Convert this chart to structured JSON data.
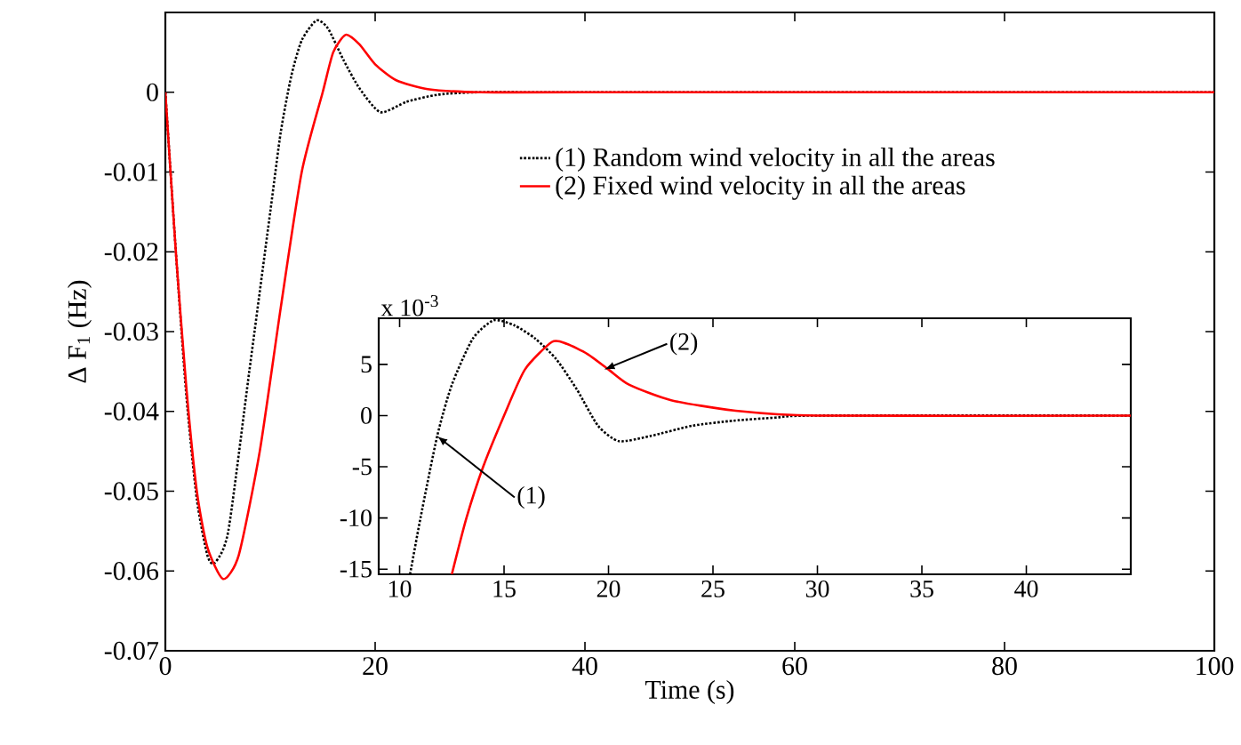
{
  "chart_data": [
    {
      "type": "line",
      "xlabel": "Time (s)",
      "ylabel": "Δ F$_{1}$ (Hz)",
      "xlim": [
        0,
        100
      ],
      "ylim": [
        -0.07,
        0.01
      ],
      "xticks": [
        0,
        20,
        40,
        60,
        80,
        100
      ],
      "yticks": [
        -0.07,
        -0.06,
        -0.05,
        -0.04,
        -0.03,
        -0.02,
        -0.01,
        0
      ],
      "grid": false,
      "legend": "top right",
      "marker": "none",
      "series": [
        {
          "name": "(1) Random wind velocity in all the areas",
          "color": "#000000",
          "line_style": "dotted",
          "x": [
            0,
            1,
            2,
            3,
            4,
            4.7,
            6,
            8,
            10,
            11,
            12,
            13,
            14.4,
            15.5,
            17,
            18.5,
            20.5,
            23,
            26,
            30,
            40,
            100
          ],
          "values": [
            0,
            -0.02,
            -0.038,
            -0.051,
            -0.058,
            -0.059,
            -0.055,
            -0.035,
            -0.015,
            -0.005,
            0.002,
            0.0065,
            0.009,
            0.008,
            0.004,
            0.0005,
            -0.0025,
            -0.0012,
            -0.0003,
            0,
            0,
            0
          ]
        },
        {
          "name": "(2) Fixed wind velocity in all the areas",
          "color": "#ff0000",
          "line_style": "solid",
          "x": [
            0,
            1,
            2,
            3,
            4,
            5.5,
            7,
            9,
            11,
            13,
            15,
            16,
            17.2,
            18.5,
            20,
            22,
            25,
            30,
            40,
            100
          ],
          "values": [
            0,
            -0.02,
            -0.037,
            -0.05,
            -0.057,
            -0.061,
            -0.058,
            -0.045,
            -0.027,
            -0.01,
            0,
            0.005,
            0.0072,
            0.006,
            0.0035,
            0.0015,
            0.0004,
            0,
            0,
            0
          ]
        }
      ]
    },
    {
      "type": "line",
      "xlim": [
        9,
        45
      ],
      "ylim": [
        -15.5,
        9.5
      ],
      "xticks": [
        10,
        15,
        20,
        25,
        30,
        35,
        40
      ],
      "yticks": [
        -15,
        -10,
        -5,
        0,
        5
      ],
      "grid": false,
      "legend": false,
      "marker": "none",
      "annotations": [
        "x 10$^{-3}$",
        {
          "text": "(1)",
          "x": 11.8,
          "y": -2
        },
        {
          "text": "(2)",
          "x": 19.8,
          "y": 4.5
        }
      ],
      "series": [
        {
          "color": "#000000",
          "line_style": "dotted",
          "x": [
            10.5,
            11,
            11.8,
            12.5,
            13.5,
            14.5,
            15.5,
            16.5,
            17.5,
            18.5,
            19.5,
            20.5,
            22,
            24,
            26,
            28,
            30,
            45
          ],
          "values": [
            -15.5,
            -10,
            -2,
            3,
            7.5,
            9.3,
            8.8,
            7.5,
            5.5,
            2.5,
            -1,
            -2.5,
            -2,
            -1,
            -0.5,
            -0.2,
            0,
            0
          ]
        },
        {
          "color": "#ff0000",
          "line_style": "solid",
          "x": [
            12.5,
            13.2,
            14,
            15,
            16,
            17.3,
            18,
            19,
            20,
            21,
            23,
            26,
            30,
            45
          ],
          "values": [
            -15.5,
            -10,
            -5,
            0,
            4.5,
            7.2,
            7,
            6,
            4.5,
            3,
            1.5,
            0.5,
            0,
            0
          ]
        }
      ]
    }
  ]
}
